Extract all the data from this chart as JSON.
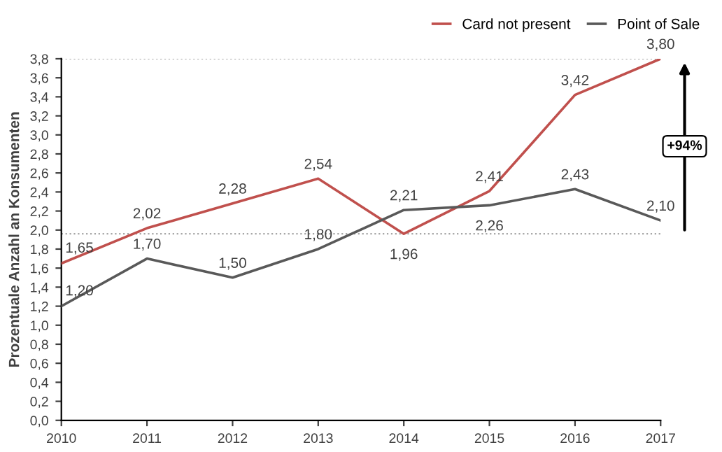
{
  "chart_data": {
    "type": "line",
    "ylabel": "Prozentuale Anzahl an Konsumenten",
    "x": [
      2010,
      2011,
      2012,
      2013,
      2014,
      2015,
      2016,
      2017
    ],
    "series": [
      {
        "name": "Card not present",
        "color": "#c0504d",
        "values": [
          1.65,
          2.02,
          2.28,
          2.54,
          1.96,
          2.41,
          3.42,
          3.8
        ],
        "value_labels": [
          "1,65",
          "2,02",
          "2,28",
          "2,54",
          "1,96",
          "2,41",
          "3,42",
          "3,80"
        ]
      },
      {
        "name": "Point of Sale",
        "color": "#595959",
        "values": [
          1.2,
          1.7,
          1.5,
          1.8,
          2.21,
          2.26,
          2.43,
          2.1
        ],
        "value_labels": [
          "1,20",
          "1,70",
          "1,50",
          "1,80",
          "2,21",
          "2,26",
          "2,43",
          "2,10"
        ]
      }
    ],
    "xlim": [
      2010,
      2017
    ],
    "xticks": [
      2010,
      2011,
      2012,
      2013,
      2014,
      2015,
      2016,
      2017
    ],
    "ylim": [
      0,
      3.8
    ],
    "yticks": [
      {
        "value": 0,
        "label": "0,0"
      },
      {
        "value": 0.2,
        "label": "0,2"
      },
      {
        "value": 0.4,
        "label": "0,4"
      },
      {
        "value": 0.6,
        "label": "0,6"
      },
      {
        "value": 0.8,
        "label": "0,8"
      },
      {
        "value": 1.0,
        "label": "1,0"
      },
      {
        "value": 1.2,
        "label": "1,2"
      },
      {
        "value": 1.4,
        "label": "1,4"
      },
      {
        "value": 1.6,
        "label": "1,6"
      },
      {
        "value": 1.8,
        "label": "1,8"
      },
      {
        "value": 2.0,
        "label": "2,0"
      },
      {
        "value": 2.2,
        "label": "2,2"
      },
      {
        "value": 2.4,
        "label": "2,4"
      },
      {
        "value": 2.6,
        "label": "2,6"
      },
      {
        "value": 2.8,
        "label": "2,8"
      },
      {
        "value": 3.0,
        "label": "3,0"
      },
      {
        "value": 3.2,
        "label": "3,2"
      },
      {
        "value": 3.4,
        "label": "3,4"
      },
      {
        "value": 3.6,
        "label": "3,6"
      },
      {
        "value": 3.8,
        "label": "3,8"
      }
    ],
    "ref_lines": [
      {
        "axis": "y",
        "value": 3.8,
        "color": "#a6a6a6",
        "line_style": "dotted"
      },
      {
        "axis": "y",
        "value": 1.96,
        "color": "#a6a6a6",
        "line_style": "dotted"
      }
    ],
    "annotations": [
      "+94%"
    ],
    "grid": false,
    "legend": "top right",
    "marker": "none",
    "line_style": "solid"
  }
}
